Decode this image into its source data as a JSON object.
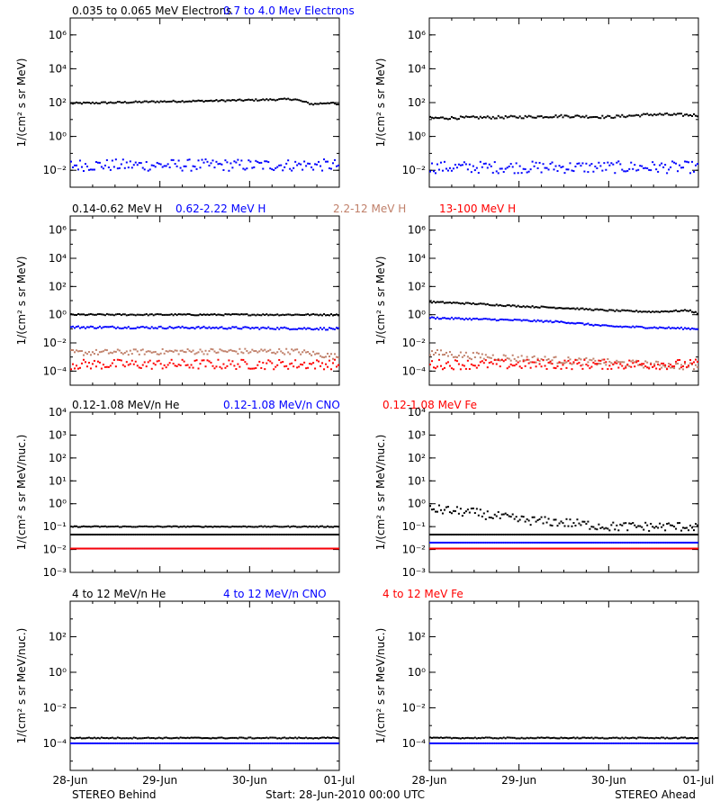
{
  "colors": {
    "black": "#000000",
    "blue": "#0000ff",
    "brown": "#c0806a",
    "red": "#ff0000"
  },
  "footer": {
    "left": "STEREO Behind",
    "center": "Start: 28-Jun-2010 00:00 UTC",
    "right": "STEREO Ahead"
  },
  "chart_data": [
    {
      "type": "scatter",
      "row": 0,
      "side": "behind",
      "ylabel": "1/(cm² s sr MeV)",
      "yscale": "log",
      "ylim": [
        0.001,
        10000000
      ],
      "yticks": [
        0.01,
        1,
        100,
        10000,
        1000000
      ],
      "yticklabels": [
        "10⁻²",
        "10⁰",
        "10²",
        "10⁴",
        "10⁶"
      ],
      "xlim": [
        0,
        3
      ],
      "xticklabels": [],
      "legend": [
        {
          "label": "0.035 to 0.065 MeV Electrons",
          "color": "black"
        },
        {
          "label": "0.7 to 4.0 Mev Electrons",
          "color": "blue"
        }
      ],
      "series": [
        {
          "color": "black",
          "x": [
            0,
            0.5,
            1,
            1.5,
            2,
            2.5,
            2.7,
            2.9,
            3
          ],
          "y": [
            90,
            100,
            115,
            125,
            140,
            160,
            80,
            100,
            70
          ],
          "scatter": 0.05
        },
        {
          "color": "blue",
          "x": [
            0,
            1,
            2,
            3
          ],
          "y": [
            0.02,
            0.02,
            0.02,
            0.02
          ],
          "scatter": 0.35
        }
      ]
    },
    {
      "type": "scatter",
      "row": 0,
      "side": "ahead",
      "ylabel": "1/(cm² s sr MeV)",
      "yscale": "log",
      "ylim": [
        0.001,
        10000000
      ],
      "yticks": [
        0.01,
        1,
        100,
        10000,
        1000000
      ],
      "yticklabels": [
        "10⁻²",
        "10⁰",
        "10²",
        "10⁴",
        "10⁶"
      ],
      "xlim": [
        0,
        3
      ],
      "xticklabels": [],
      "legend": [],
      "series": [
        {
          "color": "black",
          "x": [
            0,
            1,
            1.5,
            2,
            2.5,
            3
          ],
          "y": [
            12,
            14,
            16,
            14,
            20,
            18
          ],
          "scatter": 0.08
        },
        {
          "color": "blue",
          "x": [
            0,
            1,
            2,
            3
          ],
          "y": [
            0.015,
            0.015,
            0.015,
            0.015
          ],
          "scatter": 0.35
        }
      ]
    },
    {
      "type": "scatter",
      "row": 1,
      "side": "behind",
      "ylabel": "1/(cm² s sr MeV)",
      "yscale": "log",
      "ylim": [
        1e-05,
        10000000
      ],
      "yticks": [
        0.0001,
        0.01,
        1,
        100,
        10000,
        1000000
      ],
      "yticklabels": [
        "10⁻⁴",
        "10⁻²",
        "10⁰",
        "10²",
        "10⁴",
        "10⁶"
      ],
      "xlim": [
        0,
        3
      ],
      "xticklabels": [],
      "legend": [
        {
          "label": "0.14-0.62 MeV H",
          "color": "black"
        },
        {
          "label": "0.62-2.22 MeV H",
          "color": "blue"
        },
        {
          "label": "2.2-12 MeV H",
          "color": "brown"
        },
        {
          "label": "13-100 MeV H",
          "color": "red"
        }
      ],
      "series": [
        {
          "color": "black",
          "x": [
            0,
            1.5,
            3
          ],
          "y": [
            1,
            1,
            1
          ],
          "scatter": 0.05
        },
        {
          "color": "blue",
          "x": [
            0,
            1.5,
            3
          ],
          "y": [
            0.13,
            0.12,
            0.1
          ],
          "scatter": 0.08
        },
        {
          "color": "brown",
          "x": [
            0,
            1.5,
            2.5,
            3
          ],
          "y": [
            0.002,
            0.0025,
            0.0025,
            0.001
          ],
          "scatter": 0.2
        },
        {
          "color": "red",
          "x": [
            0,
            1.5,
            3
          ],
          "y": [
            0.0003,
            0.0003,
            0.0003
          ],
          "scatter": 0.35
        }
      ]
    },
    {
      "type": "scatter",
      "row": 1,
      "side": "ahead",
      "ylabel": "1/(cm² s sr MeV)",
      "yscale": "log",
      "ylim": [
        1e-05,
        10000000
      ],
      "yticks": [
        0.0001,
        0.01,
        1,
        100,
        10000,
        1000000
      ],
      "yticklabels": [
        "10⁻⁴",
        "10⁻²",
        "10⁰",
        "10²",
        "10⁴",
        "10⁶"
      ],
      "xlim": [
        0,
        3
      ],
      "xticklabels": [],
      "legend": [],
      "series": [
        {
          "color": "black",
          "x": [
            0,
            0.5,
            1,
            1.5,
            2,
            2.5,
            2.9,
            3
          ],
          "y": [
            8,
            6,
            4,
            3,
            2,
            1.6,
            2,
            1.2
          ],
          "scatter": 0.05
        },
        {
          "color": "blue",
          "x": [
            0,
            1,
            1.5,
            2,
            3
          ],
          "y": [
            0.6,
            0.4,
            0.3,
            0.15,
            0.1
          ],
          "scatter": 0.06
        },
        {
          "color": "brown",
          "x": [
            0,
            0.5,
            1,
            2,
            3
          ],
          "y": [
            0.002,
            0.0012,
            0.0008,
            0.0004,
            0.0002
          ],
          "scatter": 0.25
        },
        {
          "color": "red",
          "x": [
            0,
            1.5,
            3
          ],
          "y": [
            0.0003,
            0.0003,
            0.0003
          ],
          "scatter": 0.35
        }
      ]
    },
    {
      "type": "scatter",
      "row": 2,
      "side": "behind",
      "ylabel": "1/(cm² s sr MeV/nuc.)",
      "yscale": "log",
      "ylim": [
        0.001,
        10000
      ],
      "yticks": [
        0.001,
        0.01,
        0.1,
        1,
        10,
        100,
        1000,
        10000
      ],
      "yticklabels": [
        "10⁻³",
        "10⁻²",
        "10⁻¹",
        "10⁰",
        "10¹",
        "10²",
        "10³",
        "10⁴"
      ],
      "xlim": [
        0,
        3
      ],
      "xticklabels": [],
      "legend": [
        {
          "label": "0.12-1.08 MeV/n He",
          "color": "black"
        },
        {
          "label": "0.12-1.08 MeV/n CNO",
          "color": "blue"
        },
        {
          "label": "0.12-1.08 MeV Fe",
          "color": "red"
        }
      ],
      "series": [
        {
          "color": "black",
          "x": [
            0,
            3
          ],
          "y": [
            0.1,
            0.1
          ],
          "scatter": 0.02
        },
        {
          "color": "black",
          "x": [
            0,
            3
          ],
          "y": [
            0.045,
            0.045
          ],
          "scatter": 0.0
        },
        {
          "color": "blue",
          "x": [
            0,
            3
          ],
          "y": [
            0.011,
            0.011
          ],
          "scatter": 0.0
        },
        {
          "color": "red",
          "x": [
            0,
            3
          ],
          "y": [
            0.011,
            0.011
          ],
          "scatter": 0.0
        }
      ]
    },
    {
      "type": "scatter",
      "row": 2,
      "side": "ahead",
      "ylabel": "1/(cm² s sr MeV/nuc.)",
      "yscale": "log",
      "ylim": [
        0.001,
        10000
      ],
      "yticks": [
        0.001,
        0.01,
        0.1,
        1,
        10,
        100,
        1000,
        10000
      ],
      "yticklabels": [
        "10⁻³",
        "10⁻²",
        "10⁻¹",
        "10⁰",
        "10¹",
        "10²",
        "10³",
        "10⁴"
      ],
      "xlim": [
        0,
        3
      ],
      "xticklabels": [],
      "legend": [],
      "series": [
        {
          "color": "black",
          "x": [
            0,
            0.5,
            1,
            1.5,
            2,
            3
          ],
          "y": [
            0.6,
            0.4,
            0.2,
            0.15,
            0.1,
            0.1
          ],
          "scatter": 0.2
        },
        {
          "color": "black",
          "x": [
            0,
            3
          ],
          "y": [
            0.045,
            0.045
          ],
          "scatter": 0.0
        },
        {
          "color": "blue",
          "x": [
            0,
            1.4
          ],
          "y": [
            0.02,
            0.02
          ],
          "scatter": 0.0
        },
        {
          "color": "blue",
          "x": [
            0,
            3
          ],
          "y": [
            0.011,
            0.011
          ],
          "scatter": 0.0
        },
        {
          "color": "red",
          "x": [
            0,
            3
          ],
          "y": [
            0.011,
            0.011
          ],
          "scatter": 0.0
        }
      ]
    },
    {
      "type": "scatter",
      "row": 3,
      "side": "behind",
      "ylabel": "1/(cm² s sr MeV/nuc.)",
      "yscale": "log",
      "ylim": [
        3e-06,
        10000
      ],
      "yticks": [
        0.0001,
        0.01,
        1,
        100
      ],
      "yticklabels": [
        "10⁻⁴",
        "10⁻²",
        "10⁰",
        "10²"
      ],
      "xlim": [
        0,
        3
      ],
      "xticklabels": [
        "28-Jun",
        "29-Jun",
        "30-Jun",
        "01-Jul"
      ],
      "legend": [
        {
          "label": "4 to 12 MeV/n He",
          "color": "black"
        },
        {
          "label": "4 to 12 MeV/n CNO",
          "color": "blue"
        },
        {
          "label": "4 to 12 MeV Fe",
          "color": "red"
        }
      ],
      "series": [
        {
          "color": "black",
          "x": [
            0,
            3
          ],
          "y": [
            0.0002,
            0.0002
          ],
          "scatter": 0.03
        },
        {
          "color": "blue",
          "x": [
            0,
            3
          ],
          "y": [
            0.0001,
            0.0001
          ],
          "scatter": 0.0
        }
      ]
    },
    {
      "type": "scatter",
      "row": 3,
      "side": "ahead",
      "ylabel": "1/(cm² s sr MeV/nuc.)",
      "yscale": "log",
      "ylim": [
        3e-06,
        10000
      ],
      "yticks": [
        0.0001,
        0.01,
        1,
        100
      ],
      "yticklabels": [
        "10⁻⁴",
        "10⁻²",
        "10⁰",
        "10²"
      ],
      "xlim": [
        0,
        3
      ],
      "xticklabels": [
        "28-Jun",
        "29-Jun",
        "30-Jun",
        "01-Jul"
      ],
      "legend": [],
      "series": [
        {
          "color": "black",
          "x": [
            0,
            3
          ],
          "y": [
            0.0002,
            0.0002
          ],
          "scatter": 0.03
        },
        {
          "color": "blue",
          "x": [
            0,
            3
          ],
          "y": [
            0.0001,
            0.0001
          ],
          "scatter": 0.0
        }
      ]
    }
  ]
}
